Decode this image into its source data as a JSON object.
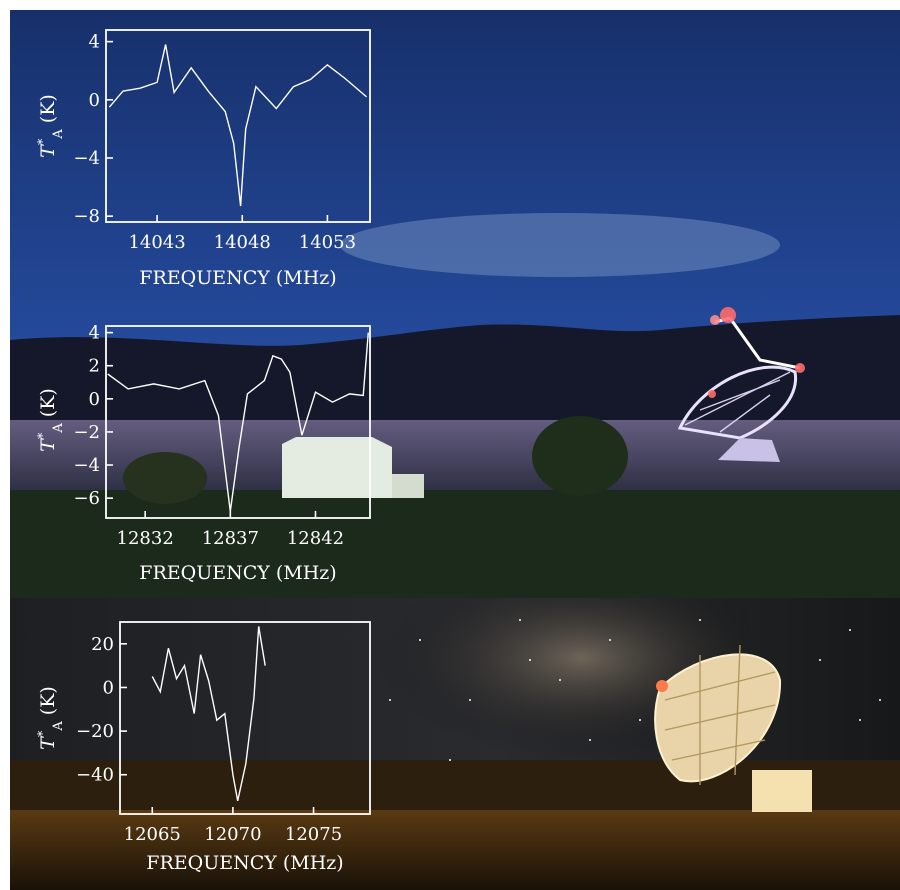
{
  "chart_data": [
    {
      "type": "line",
      "xlabel": "FREQUENCY (MHz)",
      "ylabel_main": "T",
      "ylabel_sup": "*",
      "ylabel_sub": "A",
      "ylabel_unit": " (K)",
      "xlim": [
        14040.0,
        14055.5
      ],
      "ylim": [
        -8.4,
        4.8
      ],
      "xticks": [
        14043,
        14048,
        14053
      ],
      "yticks": [
        4,
        0,
        -4,
        -8
      ],
      "xtick_labels": [
        "14043",
        "14048",
        "14053"
      ],
      "ytick_labels": [
        "4",
        "0",
        "−4",
        "−8"
      ],
      "series": [
        {
          "x": [
            14040.2,
            14041,
            14042,
            14043,
            14043.5,
            14044,
            14045,
            14046,
            14047,
            14047.5,
            14047.9,
            14048.2,
            14048.8,
            14050,
            14051,
            14052,
            14053,
            14054,
            14055.3
          ],
          "y": [
            -0.5,
            0.6,
            0.8,
            1.2,
            3.8,
            0.5,
            2.2,
            0.6,
            -0.8,
            -3.0,
            -7.3,
            -2.0,
            0.9,
            -0.6,
            0.9,
            1.4,
            2.4,
            1.5,
            0.2
          ]
        }
      ]
    },
    {
      "type": "line",
      "xlabel": "FREQUENCY (MHz)",
      "ylabel_main": "T",
      "ylabel_sup": "*",
      "ylabel_sub": "A",
      "ylabel_unit": " (K)",
      "xlim": [
        12829.7,
        12845.2
      ],
      "ylim": [
        -7.2,
        4.4
      ],
      "xticks": [
        12832,
        12837,
        12842
      ],
      "yticks": [
        4,
        2,
        0,
        -2,
        -4,
        -6
      ],
      "xtick_labels": [
        "12832",
        "12837",
        "12842"
      ],
      "ytick_labels": [
        "4",
        "2",
        "0",
        "−2",
        "−4",
        "−6"
      ],
      "series": [
        {
          "x": [
            12829.8,
            12831,
            12832.5,
            12834,
            12835.5,
            12836.3,
            12837,
            12837.5,
            12838,
            12839,
            12839.5,
            12840,
            12840.5,
            12841.2,
            12842,
            12843,
            12844,
            12844.8,
            12845.1
          ],
          "y": [
            1.5,
            0.6,
            0.9,
            0.6,
            1.1,
            -1.0,
            -6.8,
            -3.0,
            0.3,
            1.1,
            2.6,
            2.4,
            1.6,
            -2.2,
            0.4,
            -0.2,
            0.3,
            0.2,
            4.0
          ]
        }
      ]
    },
    {
      "type": "line",
      "xlabel": "FREQUENCY (MHz)",
      "ylabel_main": "T",
      "ylabel_sup": "*",
      "ylabel_sub": "A",
      "ylabel_unit": " (K)",
      "xlim": [
        12063.0,
        12078.5
      ],
      "ylim": [
        -58.0,
        30.0
      ],
      "xticks": [
        12065,
        12070,
        12075
      ],
      "yticks": [
        20,
        0,
        -20,
        -40
      ],
      "xtick_labels": [
        "12065",
        "12070",
        "12075"
      ],
      "ytick_labels": [
        "20",
        "0",
        "−20",
        "−40"
      ],
      "series": [
        {
          "x": [
            12065,
            12065.5,
            12066,
            12066.5,
            12067,
            12067.6,
            12068,
            12068.5,
            12069,
            12069.5,
            12070,
            12070.3,
            12070.8,
            12071.3,
            12071.6,
            12072
          ],
          "y": [
            5,
            -2,
            18,
            4,
            10,
            -12,
            15,
            3,
            -15,
            -12,
            -40,
            -52,
            -35,
            -5,
            28,
            10
          ]
        }
      ]
    }
  ]
}
